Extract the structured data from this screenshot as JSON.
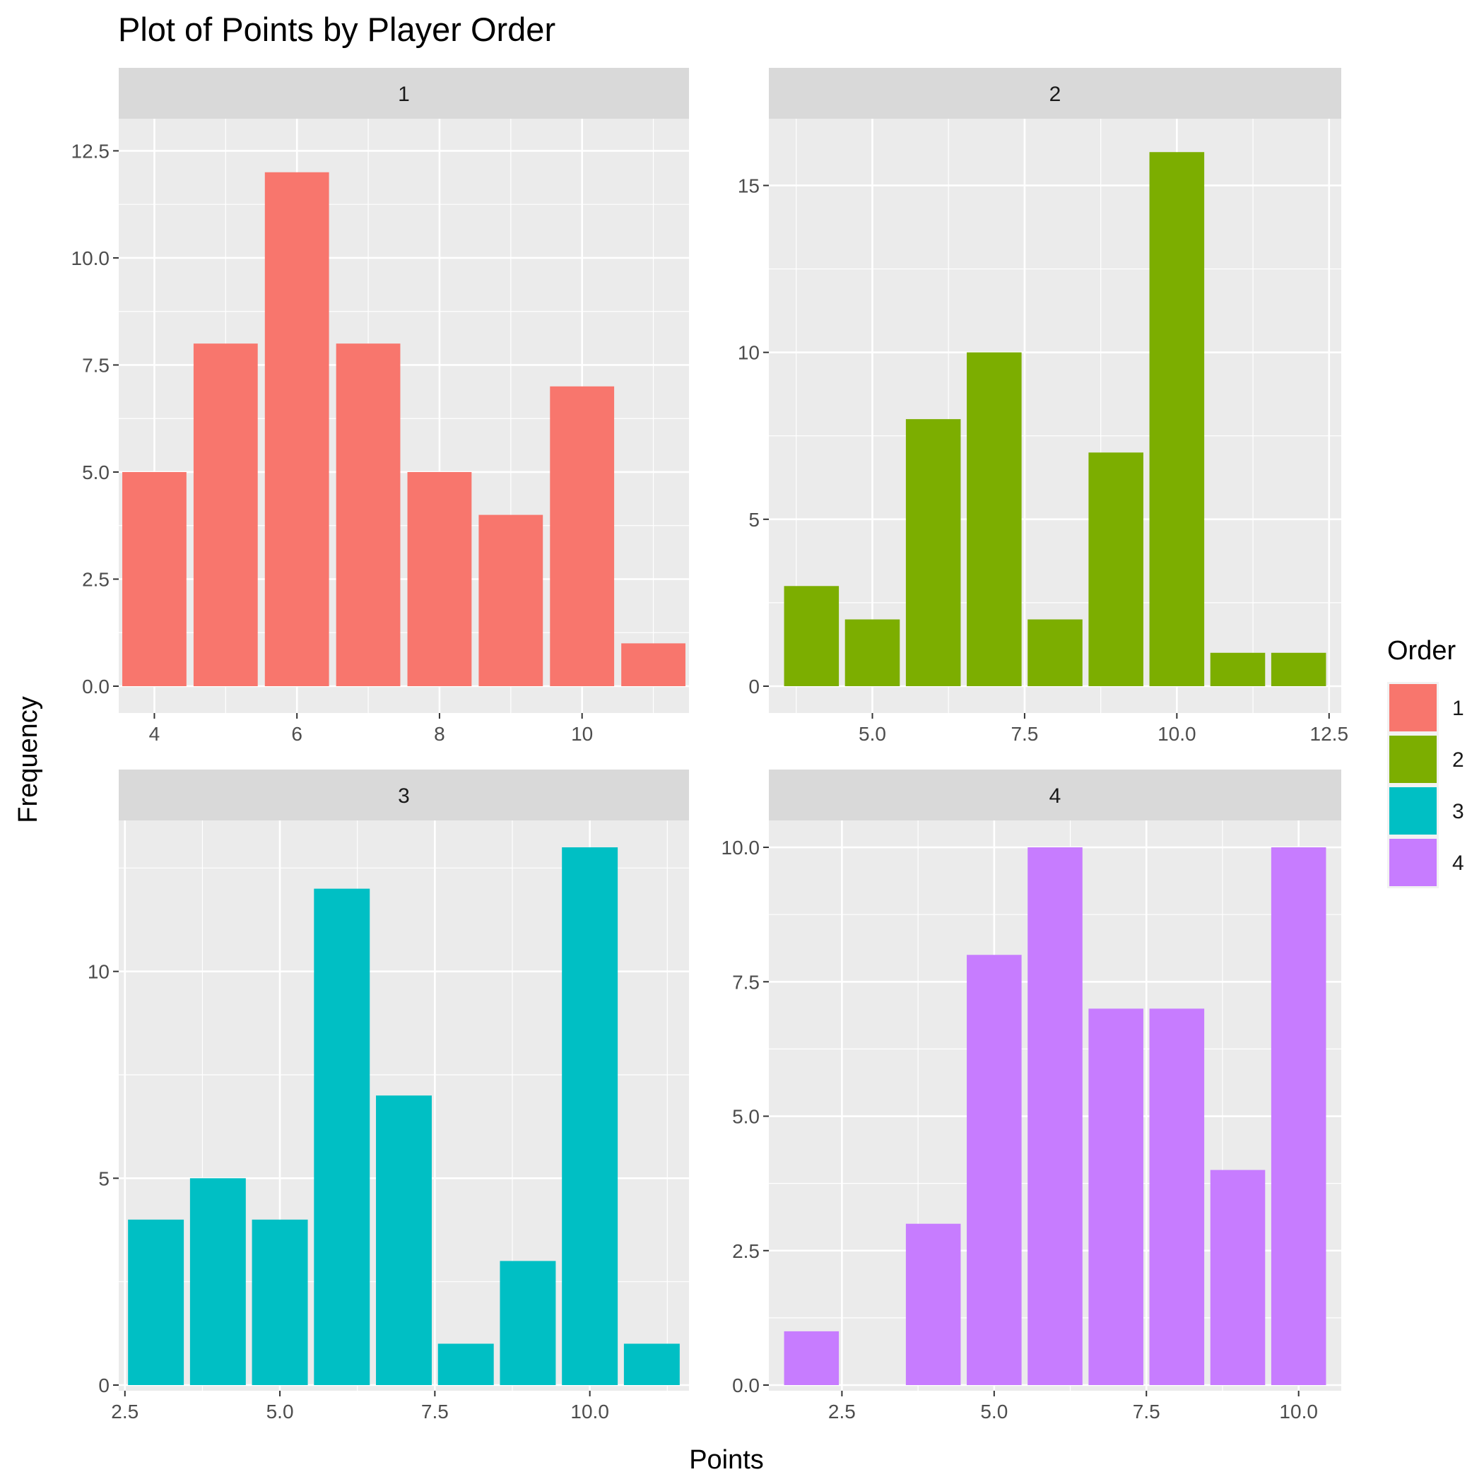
{
  "chart_data": {
    "type": "bar",
    "title": "Plot of Points by Player Order",
    "xlabel": "Points",
    "ylabel": "Frequency",
    "legend": {
      "title": "Order",
      "placement": "right",
      "entries": [
        {
          "label": "1",
          "color": "#F8766D"
        },
        {
          "label": "2",
          "color": "#7CAE00"
        },
        {
          "label": "3",
          "color": "#00BFC4"
        },
        {
          "label": "4",
          "color": "#C77CFF"
        }
      ]
    },
    "grid": true,
    "facets": [
      {
        "label": "1",
        "color": "#F8766D",
        "x": [
          4,
          5,
          6,
          7,
          8,
          9,
          10,
          11
        ],
        "values": [
          5,
          8,
          12,
          8,
          5,
          4,
          7,
          1
        ],
        "xlim": [
          3.5,
          11.5
        ],
        "ylim": [
          0,
          13.25
        ],
        "xticks": [
          4,
          6,
          8,
          10
        ],
        "xtick_labels": [
          "4",
          "6",
          "8",
          "10"
        ],
        "yticks": [
          0,
          2.5,
          5,
          7.5,
          10,
          12.5
        ],
        "ytick_labels": [
          "0.0",
          "2.5",
          "5.0",
          "7.5",
          "10.0",
          "12.5"
        ]
      },
      {
        "label": "2",
        "color": "#7CAE00",
        "x": [
          4,
          5,
          6,
          7,
          8,
          9,
          10,
          11,
          12
        ],
        "values": [
          3,
          2,
          8,
          10,
          2,
          7,
          16,
          1,
          1
        ],
        "xlim": [
          3.3,
          12.7
        ],
        "ylim": [
          0,
          17
        ],
        "xticks": [
          5,
          7.5,
          10,
          12.5
        ],
        "xtick_labels": [
          "5.0",
          "7.5",
          "10.0",
          "12.5"
        ],
        "yticks": [
          0,
          5,
          10,
          15
        ],
        "ytick_labels": [
          "0",
          "5",
          "10",
          "15"
        ]
      },
      {
        "label": "3",
        "color": "#00BFC4",
        "x": [
          3,
          4,
          5,
          6,
          7,
          8,
          9,
          10,
          11
        ],
        "values": [
          4,
          5,
          4,
          12,
          7,
          1,
          3,
          13,
          1
        ],
        "xlim": [
          2.4,
          11.6
        ],
        "ylim": [
          0,
          13.65
        ],
        "xticks": [
          2.5,
          5,
          7.5,
          10
        ],
        "xtick_labels": [
          "2.5",
          "5.0",
          "7.5",
          "10.0"
        ],
        "yticks": [
          0,
          5,
          10
        ],
        "ytick_labels": [
          "0",
          "5",
          "10"
        ]
      },
      {
        "label": "4",
        "color": "#C77CFF",
        "x": [
          2,
          3,
          4,
          5,
          6,
          7,
          8,
          9,
          10
        ],
        "values": [
          1,
          0,
          3,
          8,
          10,
          7,
          7,
          4,
          10
        ],
        "xlim": [
          1.3,
          10.7
        ],
        "ylim": [
          0,
          10.5
        ],
        "xticks": [
          2.5,
          5,
          7.5,
          10
        ],
        "xtick_labels": [
          "2.5",
          "5.0",
          "7.5",
          "10.0"
        ],
        "yticks": [
          0,
          2.5,
          5,
          7.5,
          10
        ],
        "ytick_labels": [
          "0.0",
          "2.5",
          "5.0",
          "7.5",
          "10.0"
        ]
      }
    ]
  }
}
